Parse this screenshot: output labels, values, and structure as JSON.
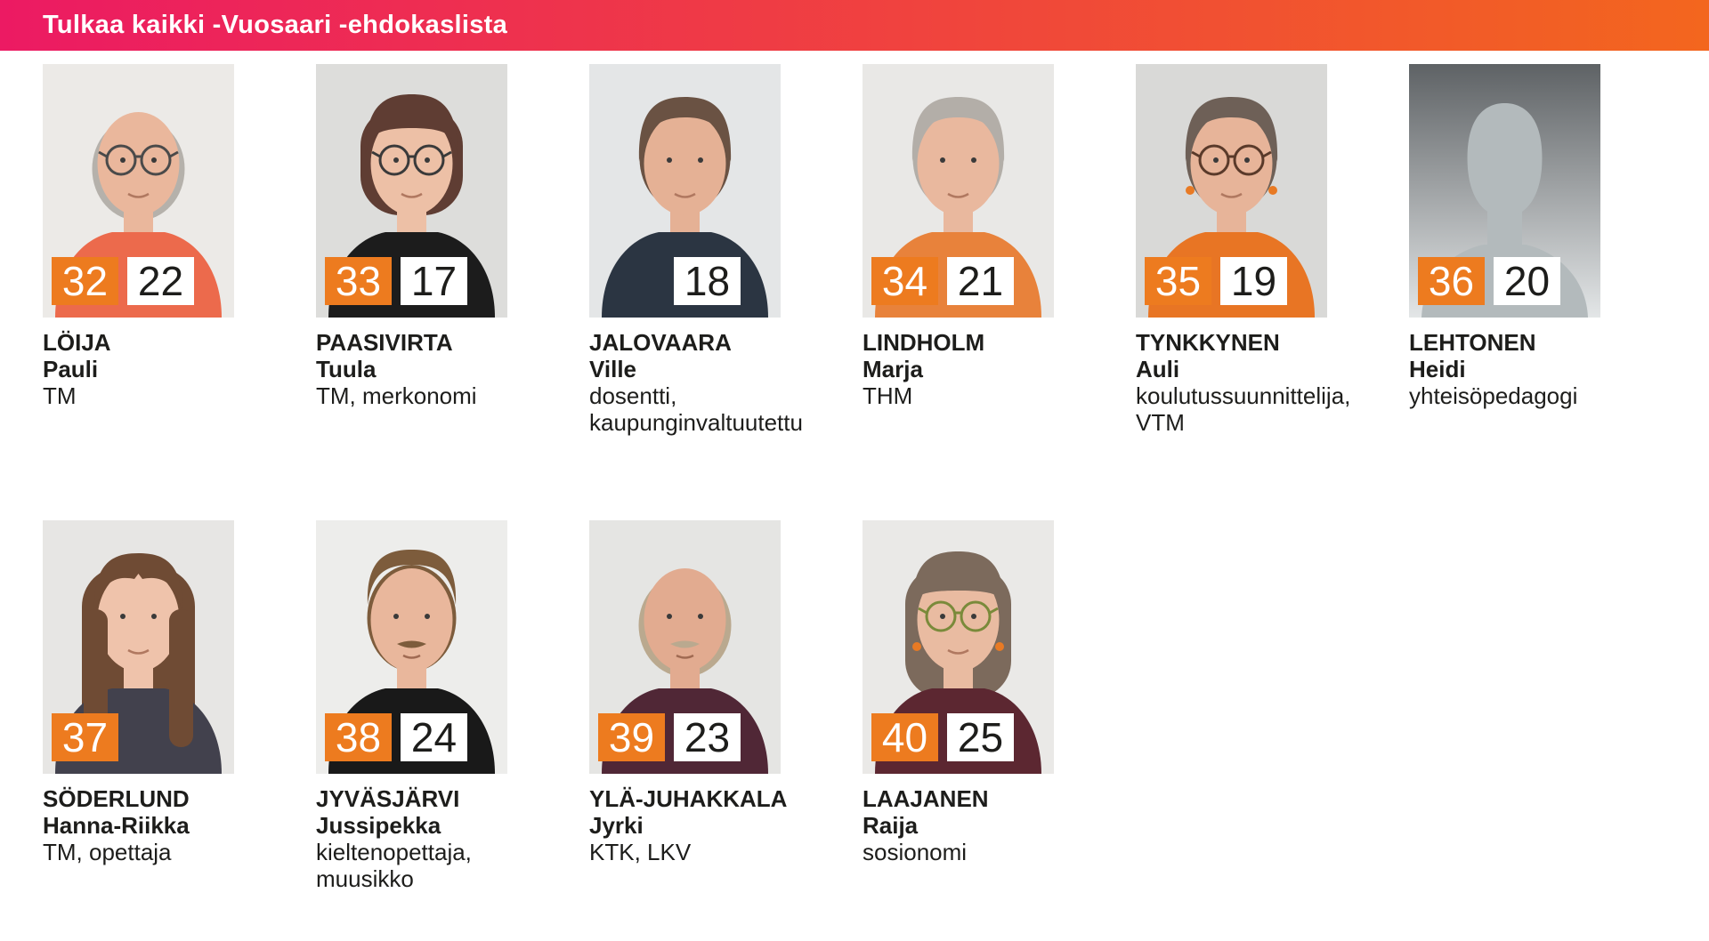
{
  "header": {
    "title": "Tulkaa kaikki -Vuosaari -ehdokaslista"
  },
  "theme": {
    "header_gradient_from": "#ec1a63",
    "header_gradient_to": "#f3661e",
    "badge_orange": "#ed7b1f",
    "badge_white": "#ffffff",
    "text_color": "#1d1d1b"
  },
  "candidates": [
    {
      "row": 1,
      "number": "32",
      "secondary_number": "22",
      "surname": "LÖIJA",
      "first_name": "Pauli",
      "description_lines": [
        "TM"
      ],
      "photo": {
        "style": "portrait",
        "bg": "#eceae7",
        "shirt": "#ec6a4c",
        "skin": "#eab79c",
        "hair": "#b5b1ab",
        "hair_style": "balding",
        "glasses": true,
        "glasses_color": "#4a4a4a",
        "earrings": false,
        "mustache": false
      }
    },
    {
      "row": 1,
      "number": "33",
      "secondary_number": "17",
      "surname": "PAASIVIRTA",
      "first_name": "Tuula",
      "description_lines": [
        "TM, merkonomi"
      ],
      "photo": {
        "style": "portrait",
        "bg": "#dddddb",
        "shirt": "#1c1c1c",
        "skin": "#edc0a6",
        "hair": "#5f3d33",
        "hair_style": "full",
        "glasses": true,
        "glasses_color": "#3a3a3a",
        "earrings": false,
        "mustache": false
      }
    },
    {
      "row": 1,
      "number": null,
      "secondary_number": "18",
      "surname": "JALOVAARA",
      "first_name": "Ville",
      "description_lines": [
        "dosentti,",
        "kaupunginvaltuutettu"
      ],
      "photo": {
        "style": "portrait",
        "bg": "#e4e6e7",
        "shirt": "#2b3542",
        "skin": "#e5b195",
        "hair": "#6a5243",
        "hair_style": "short",
        "glasses": false,
        "glasses_color": "#3a3a3a",
        "earrings": false,
        "mustache": false
      }
    },
    {
      "row": 1,
      "number": "34",
      "secondary_number": "21",
      "surname": "LINDHOLM",
      "first_name": "Marja",
      "description_lines": [
        "THM"
      ],
      "photo": {
        "style": "portrait",
        "bg": "#e9e8e6",
        "shirt": "#e8823b",
        "skin": "#e9b89e",
        "hair": "#b3aea8",
        "hair_style": "pixie",
        "glasses": false,
        "glasses_color": "#3a3a3a",
        "earrings": false,
        "mustache": false
      }
    },
    {
      "row": 1,
      "number": "35",
      "secondary_number": "19",
      "surname": "TYNKKYNEN",
      "first_name": "Auli",
      "description_lines": [
        "koulutussuunnittelija,",
        "VTM"
      ],
      "photo": {
        "style": "portrait",
        "bg": "#d9d9d7",
        "shirt": "#e87524",
        "skin": "#e7b499",
        "hair": "#6e6057",
        "hair_style": "pixie",
        "glasses": true,
        "glasses_color": "#5a3a2a",
        "earrings": true,
        "earring_color": "#e87a24",
        "mustache": false
      }
    },
    {
      "row": 1,
      "number": "36",
      "secondary_number": "20",
      "surname": "LEHTONEN",
      "first_name": "Heidi",
      "description_lines": [
        "yhteisöpedagogi"
      ],
      "photo": {
        "style": "silhouette",
        "bg_top": "#5e6265",
        "bg_bottom": "#e3e6e7",
        "figure": "#b3babc"
      }
    },
    {
      "row": 2,
      "number": "37",
      "secondary_number": null,
      "surname": "SÖDERLUND",
      "first_name": "Hanna-Riikka",
      "description_lines": [
        "TM, opettaja"
      ],
      "photo": {
        "style": "portrait",
        "bg": "#e7e6e4",
        "shirt": "#42414d",
        "skin": "#efc3ab",
        "hair": "#6f4b34",
        "hair_style": "long",
        "glasses": false,
        "glasses_color": "#3a3a3a",
        "earrings": false,
        "mustache": false
      }
    },
    {
      "row": 2,
      "number": "38",
      "secondary_number": "24",
      "surname": "JYVÄSJÄRVI",
      "first_name": "Jussipekka",
      "description_lines": [
        "kieltenopettaja,",
        "muusikko"
      ],
      "photo": {
        "style": "portrait",
        "bg": "#ededeb",
        "shirt": "#191919",
        "skin": "#e9b79c",
        "hair": "#7d5c3c",
        "hair_style": "pulled-back",
        "glasses": false,
        "glasses_color": "#3a3a3a",
        "earrings": false,
        "mustache": true
      }
    },
    {
      "row": 2,
      "number": "39",
      "secondary_number": "23",
      "surname": "YLÄ-JUHAKKALA",
      "first_name": "Jyrki",
      "description_lines": [
        "KTK, LKV"
      ],
      "photo": {
        "style": "portrait",
        "bg": "#e5e5e3",
        "shirt": "#502736",
        "skin": "#e2ab90",
        "hair": "#baa98f",
        "hair_style": "balding",
        "glasses": false,
        "glasses_color": "#3a3a3a",
        "earrings": false,
        "mustache": true
      }
    },
    {
      "row": 2,
      "number": "40",
      "secondary_number": "25",
      "surname": "LAAJANEN",
      "first_name": "Raija",
      "description_lines": [
        "sosionomi"
      ],
      "photo": {
        "style": "portrait",
        "bg": "#eae9e7",
        "shirt": "#5c2731",
        "skin": "#e9bba1",
        "hair": "#7c6a5c",
        "hair_style": "bob",
        "glasses": true,
        "glasses_color": "#7a8a3a",
        "earrings": true,
        "earring_color": "#e87a24",
        "mustache": false
      }
    }
  ]
}
